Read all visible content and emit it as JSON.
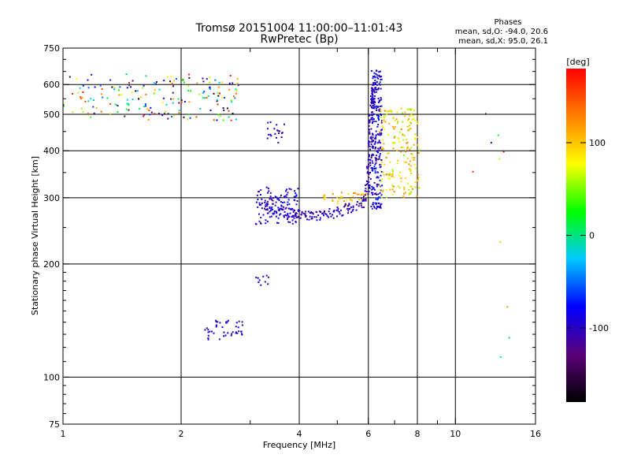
{
  "chart_data": {
    "type": "scatter",
    "title": "Tromsø 20151004 11:00:00–11:01:43",
    "subtitle": "RwPretec (Bp)",
    "xlabel": "Frequency [MHz]",
    "ylabel": "Stationary phase Virtual Height [km]",
    "x_scale": "log",
    "y_scale": "log",
    "xlim": [
      1,
      16
    ],
    "ylim": [
      75,
      750
    ],
    "x_ticks": [
      1,
      2,
      4,
      6,
      8,
      10,
      16
    ],
    "x_minor_ticks": [
      3,
      5,
      7,
      9
    ],
    "y_ticks": [
      75,
      100,
      200,
      300,
      400,
      500,
      600,
      750
    ],
    "x_gridlines": [
      2,
      4,
      6,
      8,
      10
    ],
    "y_gridlines": [
      100,
      200,
      300,
      400,
      500,
      600
    ],
    "stats": {
      "heading": "Phases",
      "line_o": "mean, sd,O: -94.0, 20.6",
      "line_x": "mean, sd,X:  95.0, 26.1"
    },
    "colorbar": {
      "label": "[deg]",
      "range": [
        -180,
        180
      ],
      "ticks": [
        100,
        0,
        -100
      ],
      "colors": [
        "#000000",
        "#5a0078",
        "#0000ff",
        "#00c8ff",
        "#00ff00",
        "#ffff00",
        "#ff8000",
        "#ff0000"
      ]
    },
    "clusters": [
      {
        "freq": [
          1.0,
          1.6
        ],
        "height": [
          490,
          640
        ],
        "phase": [
          -180,
          180
        ],
        "n": 70
      },
      {
        "freq": [
          1.6,
          2.8
        ],
        "height": [
          480,
          640
        ],
        "phase": [
          -180,
          180
        ],
        "n": 130
      },
      {
        "freq": [
          3.1,
          4.0
        ],
        "height": [
          255,
          320
        ],
        "phase": [
          -120,
          -70
        ],
        "n": 120
      },
      {
        "freq": [
          3.3,
          3.7
        ],
        "height": [
          420,
          480
        ],
        "phase": [
          -115,
          -85
        ],
        "n": 20
      },
      {
        "freq": [
          2.3,
          2.9
        ],
        "height": [
          125,
          142
        ],
        "phase": [
          -110,
          -80
        ],
        "n": 45
      },
      {
        "freq": [
          3.1,
          3.4
        ],
        "height": [
          175,
          190
        ],
        "phase": [
          -110,
          -90
        ],
        "n": 10
      },
      {
        "freq": [
          6.1,
          6.5
        ],
        "height": [
          280,
          660
        ],
        "phase": [
          -120,
          -60
        ],
        "n": 240
      },
      {
        "freq": [
          6.4,
          8.1
        ],
        "height": [
          300,
          520
        ],
        "phase": [
          50,
          130
        ],
        "n": 200
      },
      {
        "freq": [
          4.5,
          6.0
        ],
        "height": [
          285,
          310
        ],
        "phase": [
          80,
          130
        ],
        "n": 40
      },
      {
        "freq": [
          11.0,
          14.0
        ],
        "height": [
          110,
          560
        ],
        "phase": [
          -180,
          180
        ],
        "n": 10
      }
    ],
    "trace": {
      "freq": [
        3.3,
        3.6,
        3.9,
        4.2,
        4.6,
        5.0,
        5.4,
        5.8,
        6.0,
        6.05,
        6.1,
        6.15,
        6.2
      ],
      "height": [
        285,
        275,
        272,
        268,
        270,
        275,
        282,
        290,
        320,
        380,
        450,
        530,
        600
      ],
      "phase": [
        -100,
        -100,
        -100,
        -100,
        -100,
        -100,
        -100,
        -100,
        -100,
        -100,
        -100,
        -100,
        -100
      ],
      "n": 260
    }
  }
}
